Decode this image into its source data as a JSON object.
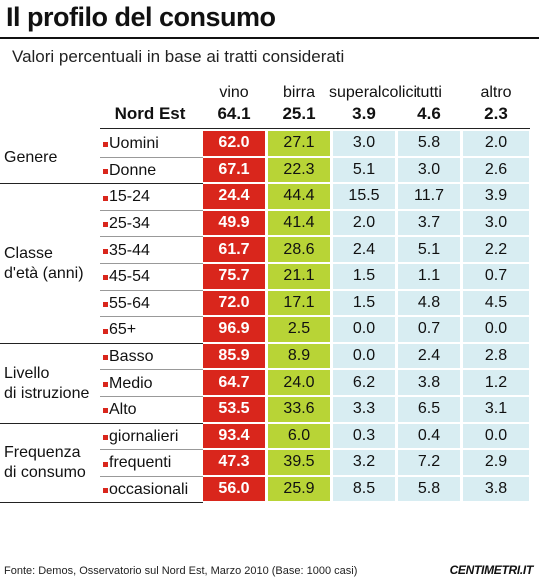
{
  "header": {
    "title": "Il profilo del consumo",
    "subtitle": "Valori percentuali in base ai tratti considerati"
  },
  "table": {
    "total_label": "Nord Est",
    "columns": [
      {
        "name": "vino",
        "total": "64.1"
      },
      {
        "name": "birra",
        "total": "25.1"
      },
      {
        "name": "superalcolici",
        "total": "3.9"
      },
      {
        "name": "tutti",
        "total": "4.6"
      },
      {
        "name": "altro",
        "total": "2.3"
      }
    ],
    "groups": [
      {
        "label": "Genere",
        "rows": [
          {
            "label": "Uomini",
            "values": [
              "62.0",
              "27.1",
              "3.0",
              "5.8",
              "2.0"
            ]
          },
          {
            "label": "Donne",
            "values": [
              "67.1",
              "22.3",
              "5.1",
              "3.0",
              "2.6"
            ]
          }
        ]
      },
      {
        "label": "Classe\nd'età (anni)",
        "rows": [
          {
            "label": "15-24",
            "values": [
              "24.4",
              "44.4",
              "15.5",
              "11.7",
              "3.9"
            ]
          },
          {
            "label": "25-34",
            "values": [
              "49.9",
              "41.4",
              "2.0",
              "3.7",
              "3.0"
            ]
          },
          {
            "label": "35-44",
            "values": [
              "61.7",
              "28.6",
              "2.4",
              "5.1",
              "2.2"
            ]
          },
          {
            "label": "45-54",
            "values": [
              "75.7",
              "21.1",
              "1.5",
              "1.1",
              "0.7"
            ]
          },
          {
            "label": "55-64",
            "values": [
              "72.0",
              "17.1",
              "1.5",
              "4.8",
              "4.5"
            ]
          },
          {
            "label": "65+",
            "values": [
              "96.9",
              "2.5",
              "0.0",
              "0.7",
              "0.0"
            ]
          }
        ]
      },
      {
        "label": "Livello\ndi istruzione",
        "rows": [
          {
            "label": "Basso",
            "values": [
              "85.9",
              "8.9",
              "0.0",
              "2.4",
              "2.8"
            ]
          },
          {
            "label": "Medio",
            "values": [
              "64.7",
              "24.0",
              "6.2",
              "3.8",
              "1.2"
            ]
          },
          {
            "label": "Alto",
            "values": [
              "53.5",
              "33.6",
              "3.3",
              "6.5",
              "3.1"
            ]
          }
        ]
      },
      {
        "label": "Frequenza\ndi consumo",
        "rows": [
          {
            "label": "giornalieri",
            "values": [
              "93.4",
              "6.0",
              "0.3",
              "0.4",
              "0.0"
            ]
          },
          {
            "label": "frequenti",
            "values": [
              "47.3",
              "39.5",
              "3.2",
              "7.2",
              "2.9"
            ]
          },
          {
            "label": "occasionali",
            "values": [
              "56.0",
              "25.9",
              "8.5",
              "5.8",
              "3.8"
            ]
          }
        ]
      }
    ]
  },
  "footer": {
    "source": "Fonte: Demos, Osservatorio sul Nord Est, Marzo 2010 (Base: 1000 casi)",
    "logo": "CENTIMETRI.IT"
  }
}
